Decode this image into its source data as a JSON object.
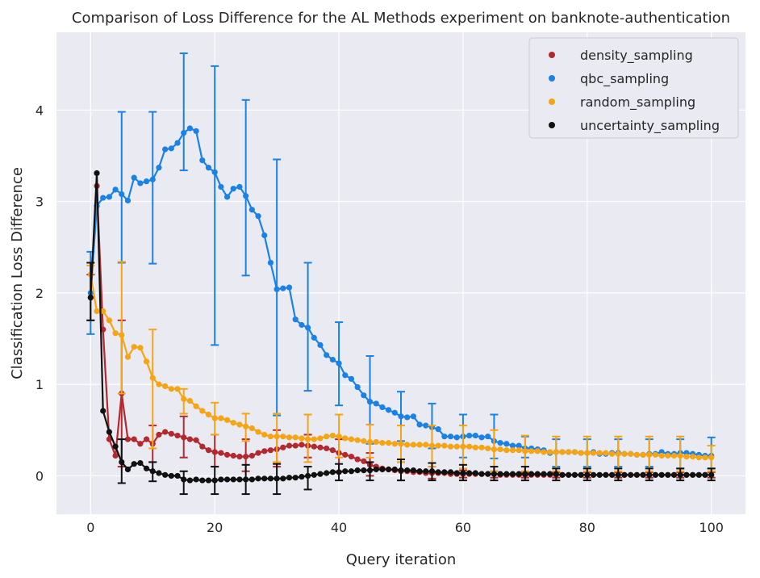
{
  "chart_data": {
    "type": "line",
    "title": "Comparison of Loss Difference for the AL Methods experiment on banknote-authentication",
    "xlabel": "Query iteration",
    "ylabel": "Classification Loss Difference",
    "xlim": [
      -5.5,
      105.5
    ],
    "ylim": [
      -0.42,
      4.85
    ],
    "xticks": [
      0,
      20,
      40,
      60,
      80,
      100
    ],
    "yticks": [
      0,
      1,
      2,
      3,
      4
    ],
    "grid": true,
    "legend_position": "top-right",
    "series": [
      {
        "name": "density_sampling",
        "color": "#b2292e",
        "values": [
          1.95,
          3.17,
          1.6,
          0.4,
          0.22,
          0.9,
          0.4,
          0.4,
          0.35,
          0.4,
          0.35,
          0.45,
          0.48,
          0.46,
          0.44,
          0.42,
          0.4,
          0.39,
          0.32,
          0.28,
          0.26,
          0.25,
          0.23,
          0.22,
          0.21,
          0.21,
          0.22,
          0.25,
          0.27,
          0.28,
          0.29,
          0.31,
          0.33,
          0.33,
          0.34,
          0.33,
          0.32,
          0.31,
          0.3,
          0.28,
          0.25,
          0.23,
          0.21,
          0.18,
          0.16,
          0.12,
          0.1,
          0.08,
          0.07,
          0.06,
          0.05,
          0.05,
          0.04,
          0.04,
          0.03,
          0.03,
          0.03,
          0.03,
          0.02,
          0.02,
          0.02,
          0.02,
          0.02,
          0.02,
          0.02,
          0.02,
          0.01,
          0.01,
          0.01,
          0.01,
          0.01,
          0.01,
          0.01,
          0.01,
          0.01,
          0.01,
          0.01,
          0.01,
          0.01,
          0.01,
          0.01,
          0.01,
          0.01,
          0.01,
          0.01,
          0.01,
          0.01,
          0.01,
          0.01,
          0.01,
          0.01,
          0.01,
          0.01,
          0.01,
          0.01,
          0.01,
          0.01,
          0.01,
          0.01,
          0.01,
          0.01
        ],
        "errorbars": {
          "0": [
            1.7,
            2.2
          ],
          "5": [
            0.1,
            1.7
          ],
          "10": [
            0.15,
            0.55
          ],
          "15": [
            0.2,
            0.65
          ],
          "20": [
            0.1,
            0.45
          ],
          "25": [
            0.05,
            0.4
          ],
          "30": [
            0.1,
            0.5
          ],
          "35": [
            0.2,
            0.45
          ],
          "40": [
            0.05,
            0.4
          ],
          "45": [
            0.0,
            0.25
          ],
          "50": [
            -0.05,
            0.15
          ],
          "55": [
            -0.03,
            0.1
          ],
          "60": [
            -0.02,
            0.06
          ],
          "65": [
            -0.02,
            0.05
          ],
          "70": [
            -0.02,
            0.04
          ],
          "75": [
            -0.02,
            0.04
          ],
          "80": [
            -0.02,
            0.04
          ],
          "85": [
            -0.02,
            0.04
          ],
          "90": [
            -0.02,
            0.04
          ],
          "95": [
            -0.02,
            0.04
          ],
          "100": [
            -0.02,
            0.04
          ]
        }
      },
      {
        "name": "qbc_sampling",
        "color": "#1a82e6",
        "values": [
          2.0,
          2.95,
          3.04,
          3.05,
          3.13,
          3.08,
          3.01,
          3.26,
          3.2,
          3.22,
          3.24,
          3.37,
          3.57,
          3.58,
          3.64,
          3.75,
          3.8,
          3.77,
          3.45,
          3.37,
          3.32,
          3.16,
          3.05,
          3.14,
          3.16,
          3.06,
          2.91,
          2.84,
          2.63,
          2.33,
          2.04,
          2.05,
          2.06,
          1.71,
          1.65,
          1.62,
          1.51,
          1.43,
          1.32,
          1.27,
          1.23,
          1.1,
          1.06,
          0.97,
          0.88,
          0.81,
          0.79,
          0.75,
          0.72,
          0.69,
          0.65,
          0.64,
          0.65,
          0.56,
          0.55,
          0.53,
          0.51,
          0.43,
          0.43,
          0.42,
          0.43,
          0.44,
          0.44,
          0.42,
          0.43,
          0.38,
          0.36,
          0.35,
          0.33,
          0.33,
          0.3,
          0.3,
          0.29,
          0.28,
          0.25,
          0.26,
          0.26,
          0.26,
          0.26,
          0.25,
          0.25,
          0.26,
          0.24,
          0.24,
          0.25,
          0.25,
          0.24,
          0.24,
          0.23,
          0.23,
          0.24,
          0.24,
          0.26,
          0.24,
          0.24,
          0.25,
          0.25,
          0.24,
          0.23,
          0.22,
          0.22
        ],
        "errorbars": {
          "0": [
            1.55,
            2.45
          ],
          "5": [
            2.33,
            3.98
          ],
          "10": [
            2.32,
            3.98
          ],
          "15": [
            3.34,
            4.62
          ],
          "20": [
            1.43,
            4.48
          ],
          "25": [
            2.19,
            4.11
          ],
          "30": [
            0.66,
            3.46
          ],
          "35": [
            0.93,
            2.33
          ],
          "40": [
            0.77,
            1.68
          ],
          "45": [
            0.35,
            1.31
          ],
          "50": [
            0.38,
            0.92
          ],
          "55": [
            0.3,
            0.79
          ],
          "60": [
            0.2,
            0.67
          ],
          "65": [
            0.19,
            0.67
          ],
          "70": [
            0.2,
            0.43
          ],
          "75": [
            0.1,
            0.4
          ],
          "80": [
            0.1,
            0.4
          ],
          "85": [
            0.1,
            0.4
          ],
          "90": [
            0.1,
            0.4
          ],
          "95": [
            0.08,
            0.4
          ],
          "100": [
            0.08,
            0.42
          ]
        }
      },
      {
        "name": "random_sampling",
        "color": "#f5a514",
        "values": [
          2.2,
          1.8,
          1.8,
          1.7,
          1.56,
          1.54,
          1.3,
          1.41,
          1.4,
          1.25,
          1.07,
          1.0,
          0.98,
          0.95,
          0.95,
          0.84,
          0.82,
          0.76,
          0.71,
          0.67,
          0.63,
          0.63,
          0.61,
          0.58,
          0.56,
          0.54,
          0.52,
          0.48,
          0.45,
          0.43,
          0.43,
          0.43,
          0.42,
          0.42,
          0.41,
          0.4,
          0.4,
          0.41,
          0.43,
          0.44,
          0.43,
          0.41,
          0.4,
          0.39,
          0.38,
          0.37,
          0.37,
          0.36,
          0.36,
          0.35,
          0.35,
          0.34,
          0.34,
          0.34,
          0.34,
          0.33,
          0.33,
          0.33,
          0.32,
          0.32,
          0.32,
          0.32,
          0.31,
          0.31,
          0.3,
          0.29,
          0.29,
          0.28,
          0.28,
          0.28,
          0.27,
          0.27,
          0.27,
          0.26,
          0.26,
          0.26,
          0.26,
          0.26,
          0.26,
          0.25,
          0.25,
          0.25,
          0.25,
          0.25,
          0.24,
          0.24,
          0.24,
          0.24,
          0.23,
          0.23,
          0.23,
          0.23,
          0.22,
          0.22,
          0.22,
          0.22,
          0.21,
          0.21,
          0.2,
          0.2,
          0.2
        ],
        "errorbars": {
          "0": [
            1.7,
            2.3
          ],
          "5": [
            0.9,
            2.34
          ],
          "10": [
            0.3,
            1.6
          ],
          "15": [
            0.68,
            0.95
          ],
          "20": [
            0.45,
            0.8
          ],
          "25": [
            0.38,
            0.68
          ],
          "30": [
            0.15,
            0.68
          ],
          "35": [
            0.15,
            0.67
          ],
          "40": [
            0.2,
            0.67
          ],
          "45": [
            0.2,
            0.56
          ],
          "50": [
            0.15,
            0.55
          ],
          "55": [
            0.1,
            0.55
          ],
          "60": [
            0.08,
            0.55
          ],
          "65": [
            0.05,
            0.5
          ],
          "70": [
            0.05,
            0.44
          ],
          "75": [
            0.05,
            0.43
          ],
          "80": [
            0.05,
            0.43
          ],
          "85": [
            0.05,
            0.43
          ],
          "90": [
            0.05,
            0.43
          ],
          "95": [
            0.05,
            0.43
          ],
          "100": [
            0.05,
            0.33
          ]
        }
      },
      {
        "name": "uncertainty_sampling",
        "color": "#111111",
        "values": [
          1.95,
          3.31,
          0.71,
          0.48,
          0.32,
          0.15,
          0.07,
          0.13,
          0.14,
          0.08,
          0.05,
          0.03,
          0.01,
          0.0,
          0.0,
          -0.04,
          -0.05,
          -0.04,
          -0.05,
          -0.05,
          -0.05,
          -0.04,
          -0.04,
          -0.04,
          -0.04,
          -0.04,
          -0.04,
          -0.03,
          -0.03,
          -0.03,
          -0.03,
          -0.03,
          -0.02,
          -0.02,
          -0.01,
          0.0,
          0.01,
          0.02,
          0.03,
          0.04,
          0.04,
          0.05,
          0.05,
          0.06,
          0.06,
          0.06,
          0.07,
          0.07,
          0.07,
          0.07,
          0.06,
          0.06,
          0.06,
          0.05,
          0.05,
          0.05,
          0.04,
          0.04,
          0.04,
          0.03,
          0.03,
          0.03,
          0.03,
          0.02,
          0.02,
          0.02,
          0.02,
          0.02,
          0.02,
          0.02,
          0.02,
          0.02,
          0.02,
          0.02,
          0.02,
          0.02,
          0.01,
          0.01,
          0.01,
          0.01,
          0.01,
          0.01,
          0.01,
          0.01,
          0.01,
          0.01,
          0.01,
          0.01,
          0.01,
          0.01,
          0.01,
          0.01,
          0.01,
          0.01,
          0.01,
          0.01,
          0.01,
          0.01,
          0.01,
          0.01,
          0.01
        ],
        "errorbars": {
          "0": [
            1.7,
            2.33
          ],
          "5": [
            -0.08,
            0.4
          ],
          "10": [
            -0.06,
            0.15
          ],
          "15": [
            -0.2,
            0.05
          ],
          "20": [
            -0.2,
            0.1
          ],
          "25": [
            -0.2,
            0.12
          ],
          "30": [
            -0.2,
            0.13
          ],
          "35": [
            -0.15,
            0.1
          ],
          "40": [
            -0.05,
            0.13
          ],
          "45": [
            -0.05,
            0.15
          ],
          "50": [
            -0.05,
            0.18
          ],
          "55": [
            -0.05,
            0.14
          ],
          "60": [
            -0.05,
            0.12
          ],
          "65": [
            -0.05,
            0.1
          ],
          "70": [
            -0.05,
            0.1
          ],
          "75": [
            -0.05,
            0.08
          ],
          "80": [
            -0.05,
            0.08
          ],
          "85": [
            -0.05,
            0.08
          ],
          "90": [
            -0.05,
            0.08
          ],
          "95": [
            -0.05,
            0.08
          ],
          "100": [
            -0.05,
            0.08
          ]
        }
      }
    ]
  }
}
